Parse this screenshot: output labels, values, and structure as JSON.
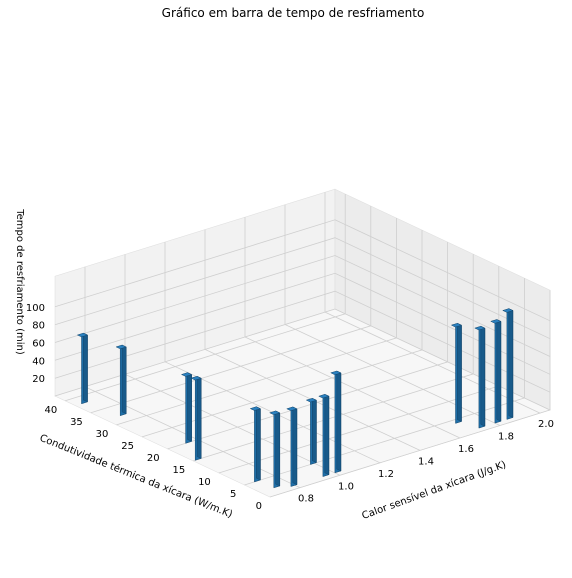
{
  "chart_data": {
    "type": "bar3d",
    "title": "Gráfico em barra de tempo de resfriamento",
    "xlabel": "Calor sensível da xícara (J/g.K)",
    "ylabel": "Condutividade térmica da xícara (W/m.K)",
    "zlabel": "Tempo de resfriamento (min)",
    "xlim": [
      0.65,
      2.05
    ],
    "ylim": [
      0,
      42
    ],
    "zlim": [
      0,
      120
    ],
    "xticks": [
      "0.8",
      "1.0",
      "1.2",
      "1.4",
      "1.6",
      "1.8",
      "2.0"
    ],
    "yticks": [
      "0",
      "5",
      "10",
      "15",
      "20",
      "25",
      "30",
      "35",
      "40"
    ],
    "zticks": [
      "20",
      "40",
      "60",
      "80",
      "100"
    ],
    "grid": true,
    "color": "#1f6fa8",
    "bars": [
      {
        "x": 0.68,
        "y": 38,
        "z": 75
      },
      {
        "x": 0.72,
        "y": 32,
        "z": 75
      },
      {
        "x": 0.74,
        "y": 20,
        "z": 75
      },
      {
        "x": 0.7,
        "y": 5,
        "z": 80
      },
      {
        "x": 0.72,
        "y": 2,
        "z": 82
      },
      {
        "x": 0.78,
        "y": 1,
        "z": 85
      },
      {
        "x": 0.94,
        "y": 1,
        "z": 88
      },
      {
        "x": 0.98,
        "y": 5,
        "z": 70
      },
      {
        "x": 1.0,
        "y": 1,
        "z": 110
      },
      {
        "x": 1.68,
        "y": 4,
        "z": 108
      },
      {
        "x": 1.72,
        "y": 1,
        "z": 110
      },
      {
        "x": 1.8,
        "y": 1,
        "z": 112
      },
      {
        "x": 1.86,
        "y": 1,
        "z": 120
      },
      {
        "x": 0.66,
        "y": 15,
        "z": 90
      }
    ]
  }
}
